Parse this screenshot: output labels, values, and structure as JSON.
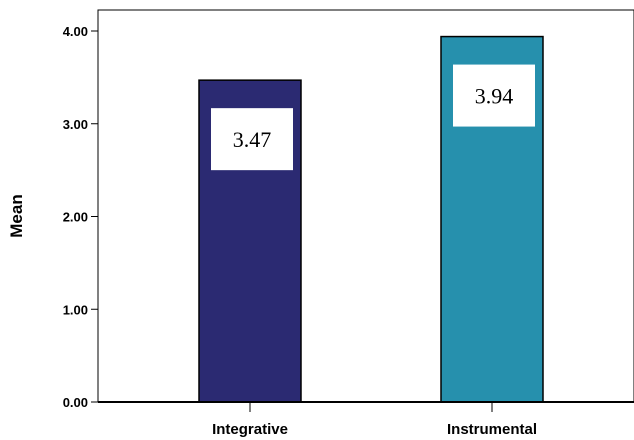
{
  "chart_data": {
    "type": "bar",
    "title": "",
    "xlabel": "",
    "ylabel": "Mean",
    "ylim": [
      0,
      4
    ],
    "yticks": [
      "0.00",
      "1.00",
      "2.00",
      "3.00",
      "4.00"
    ],
    "categories": [
      "Integrative",
      "Instrumental"
    ],
    "values": [
      3.47,
      3.94
    ],
    "data_labels": [
      "3.47",
      "3.94"
    ],
    "colors": [
      "#2b2a72",
      "#2690ad"
    ],
    "grid": false,
    "legend": "none"
  }
}
